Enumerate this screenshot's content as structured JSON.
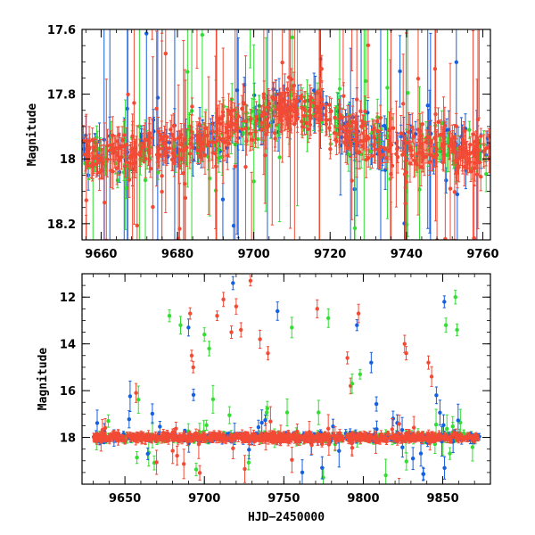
{
  "chart_data": [
    {
      "type": "scatter",
      "title": "",
      "xlabel": "",
      "ylabel": "Magnitude",
      "xlim": [
        9655,
        9762
      ],
      "ylim": [
        18.25,
        17.6
      ],
      "y_inverted": true,
      "x_ticks": [
        9660,
        9680,
        9700,
        9720,
        9740,
        9760
      ],
      "y_ticks": [
        17.6,
        17.8,
        18,
        18.2
      ],
      "x_tick_labels": [
        "9660",
        "9680",
        "9700",
        "9720",
        "9740",
        "9760"
      ],
      "y_tick_labels": [
        "17.6",
        "17.8",
        "18",
        "18.2"
      ],
      "series": [
        {
          "name": "blue",
          "color": "#1560e0"
        },
        {
          "name": "green",
          "color": "#33dd33"
        },
        {
          "name": "red",
          "color": "#f24a35"
        }
      ],
      "trend": {
        "x": [
          9655,
          9665,
          9675,
          9685,
          9690,
          9695,
          9700,
          9705,
          9710,
          9715,
          9718,
          9720,
          9725,
          9730,
          9735,
          9740,
          9745,
          9750,
          9755,
          9762
        ],
        "y": [
          17.98,
          17.99,
          17.96,
          17.95,
          17.93,
          17.9,
          17.88,
          17.86,
          17.85,
          17.84,
          17.84,
          17.88,
          17.92,
          17.95,
          17.96,
          17.96,
          17.95,
          17.96,
          17.98,
          17.98
        ]
      }
    },
    {
      "type": "scatter",
      "title": "",
      "xlabel": "HJD−2450000",
      "ylabel": "Magnitude",
      "xlim": [
        9623,
        9880
      ],
      "ylim": [
        20,
        11
      ],
      "y_inverted": true,
      "x_ticks": [
        9650,
        9700,
        9750,
        9800,
        9850
      ],
      "y_ticks": [
        12,
        14,
        16,
        18
      ],
      "x_tick_labels": [
        "9650",
        "9700",
        "9750",
        "9800",
        "9850"
      ],
      "y_tick_labels": [
        "12",
        "14",
        "16",
        "18"
      ],
      "series": [
        {
          "name": "blue",
          "color": "#1560e0"
        },
        {
          "name": "green",
          "color": "#33dd33"
        },
        {
          "name": "red",
          "color": "#f24a35"
        }
      ],
      "baseline": {
        "x": [
          9630,
          9873
        ],
        "y": 18.0
      },
      "outliers": [
        {
          "x": 9657,
          "y": 16.1,
          "s": 2
        },
        {
          "x": 9678,
          "y": 12.8,
          "s": 1
        },
        {
          "x": 9685,
          "y": 13.2,
          "s": 1
        },
        {
          "x": 9690,
          "y": 13.3,
          "s": 0
        },
        {
          "x": 9691,
          "y": 12.7,
          "s": 2
        },
        {
          "x": 9692,
          "y": 14.5,
          "s": 2
        },
        {
          "x": 9693,
          "y": 15.0,
          "s": 2
        },
        {
          "x": 9700,
          "y": 13.6,
          "s": 1
        },
        {
          "x": 9703,
          "y": 14.2,
          "s": 1
        },
        {
          "x": 9708,
          "y": 12.8,
          "s": 2
        },
        {
          "x": 9712,
          "y": 12.1,
          "s": 2
        },
        {
          "x": 9717,
          "y": 13.5,
          "s": 2
        },
        {
          "x": 9718,
          "y": 11.4,
          "s": 0
        },
        {
          "x": 9720,
          "y": 12.4,
          "s": 2
        },
        {
          "x": 9723,
          "y": 13.4,
          "s": 2
        },
        {
          "x": 9729,
          "y": 11.3,
          "s": 2
        },
        {
          "x": 9735,
          "y": 13.8,
          "s": 2
        },
        {
          "x": 9740,
          "y": 14.4,
          "s": 2
        },
        {
          "x": 9746,
          "y": 12.6,
          "s": 0
        },
        {
          "x": 9755,
          "y": 13.3,
          "s": 1
        },
        {
          "x": 9771,
          "y": 12.5,
          "s": 2
        },
        {
          "x": 9778,
          "y": 12.9,
          "s": 1
        },
        {
          "x": 9790,
          "y": 14.6,
          "s": 2
        },
        {
          "x": 9796,
          "y": 13.2,
          "s": 0
        },
        {
          "x": 9797,
          "y": 12.7,
          "s": 2
        },
        {
          "x": 9798,
          "y": 15.3,
          "s": 1
        },
        {
          "x": 9792,
          "y": 15.8,
          "s": 2
        },
        {
          "x": 9793,
          "y": 15.7,
          "s": 1
        },
        {
          "x": 9805,
          "y": 14.8,
          "s": 0
        },
        {
          "x": 9826,
          "y": 14.0,
          "s": 2
        },
        {
          "x": 9827,
          "y": 14.4,
          "s": 2
        },
        {
          "x": 9841,
          "y": 14.8,
          "s": 2
        },
        {
          "x": 9843,
          "y": 15.4,
          "s": 2
        },
        {
          "x": 9846,
          "y": 16.2,
          "s": 0
        },
        {
          "x": 9851,
          "y": 12.2,
          "s": 0
        },
        {
          "x": 9852,
          "y": 13.2,
          "s": 1
        },
        {
          "x": 9858,
          "y": 12.0,
          "s": 1
        },
        {
          "x": 9859,
          "y": 13.4,
          "s": 1
        }
      ]
    }
  ]
}
